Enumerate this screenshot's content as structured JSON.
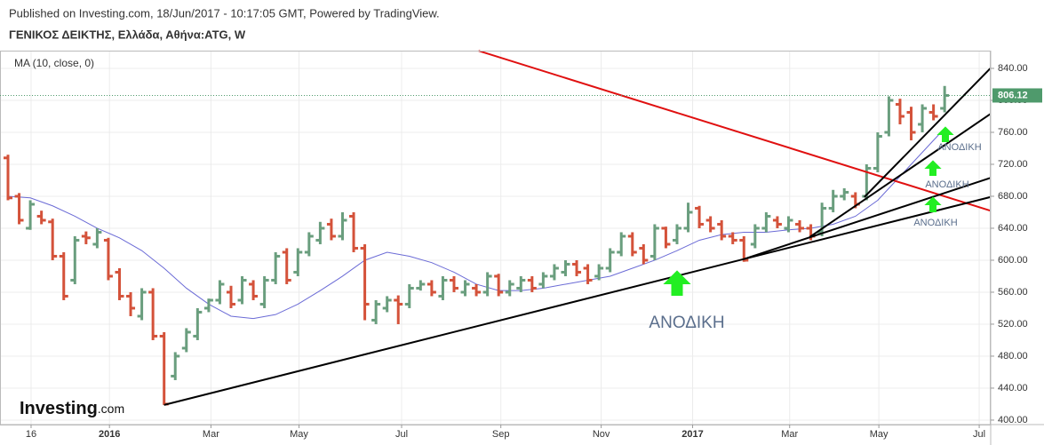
{
  "chart_data": {
    "type": "ohlc",
    "published": "Published on Investing.com, 18/Jun/2017 - 10:17:05 GMT, Powered by TradingView.",
    "title": "ΓΕΝΙΚΟΣ ΔΕΙΚΤΗΣ, Ελλάδα, Αθήνα:ATG, W",
    "logo": "Investing",
    "logo_suffix": ".com",
    "up_color": "#6a9e7e",
    "down_color": "#d4523a",
    "open": [
      728,
      680,
      640,
      655,
      648,
      605,
      575,
      630,
      620,
      625,
      585,
      555,
      530,
      560,
      505,
      455,
      490,
      505,
      540,
      550,
      560,
      550,
      570,
      545,
      575,
      610,
      585,
      610,
      625,
      645,
      630,
      655,
      615,
      525,
      540,
      550,
      545,
      565,
      570,
      555,
      575,
      560,
      565,
      560,
      580,
      560,
      565,
      575,
      570,
      580,
      585,
      595,
      590,
      580,
      590,
      610,
      630,
      615,
      605,
      640,
      625,
      640,
      665,
      650,
      645,
      630,
      625,
      620,
      640,
      650,
      640,
      645,
      640,
      635,
      665,
      680,
      680,
      680,
      715,
      760,
      795,
      785,
      770,
      785,
      790
    ],
    "high": [
      732,
      684,
      675,
      662,
      652,
      610,
      630,
      636,
      640,
      628,
      590,
      560,
      565,
      565,
      510,
      485,
      515,
      540,
      552,
      575,
      568,
      580,
      575,
      580,
      610,
      615,
      615,
      635,
      648,
      652,
      660,
      660,
      620,
      550,
      555,
      556,
      570,
      575,
      575,
      580,
      580,
      575,
      570,
      585,
      583,
      575,
      580,
      580,
      585,
      595,
      600,
      600,
      595,
      595,
      615,
      635,
      635,
      620,
      645,
      642,
      645,
      672,
      668,
      655,
      650,
      635,
      630,
      645,
      660,
      655,
      655,
      650,
      645,
      672,
      688,
      690,
      685,
      720,
      760,
      805,
      802,
      792,
      795,
      795,
      818
    ],
    "low": [
      675,
      645,
      638,
      645,
      600,
      550,
      570,
      620,
      615,
      575,
      550,
      530,
      525,
      500,
      419,
      450,
      485,
      500,
      535,
      545,
      540,
      545,
      550,
      540,
      570,
      570,
      580,
      605,
      620,
      625,
      625,
      610,
      525,
      520,
      535,
      520,
      540,
      562,
      555,
      550,
      560,
      555,
      555,
      555,
      555,
      555,
      560,
      560,
      565,
      575,
      580,
      580,
      570,
      575,
      585,
      605,
      605,
      595,
      600,
      615,
      620,
      635,
      640,
      635,
      625,
      620,
      598,
      615,
      635,
      640,
      635,
      635,
      625,
      630,
      660,
      675,
      665,
      675,
      710,
      755,
      770,
      750,
      760,
      775,
      785
    ],
    "close": [
      678,
      650,
      670,
      650,
      605,
      555,
      625,
      628,
      635,
      580,
      555,
      540,
      560,
      505,
      420,
      480,
      510,
      535,
      550,
      570,
      545,
      575,
      555,
      575,
      605,
      575,
      610,
      630,
      640,
      630,
      650,
      615,
      545,
      545,
      550,
      545,
      565,
      570,
      560,
      575,
      565,
      570,
      560,
      580,
      560,
      570,
      575,
      565,
      580,
      590,
      595,
      585,
      575,
      590,
      610,
      630,
      610,
      600,
      640,
      620,
      640,
      660,
      645,
      640,
      630,
      625,
      600,
      640,
      655,
      645,
      650,
      640,
      630,
      665,
      680,
      685,
      670,
      715,
      755,
      800,
      780,
      760,
      790,
      780,
      806.12
    ],
    "ma": {
      "label": "MA (10, close, 0)",
      "color": "#6b6bd6",
      "x": [
        0,
        2,
        4,
        6,
        8,
        10,
        12,
        14,
        16,
        18,
        20,
        22,
        24,
        26,
        28,
        30,
        32,
        34,
        36,
        38,
        40,
        42,
        44,
        46,
        48,
        50,
        52,
        54,
        56,
        58,
        60,
        62,
        64,
        66,
        68,
        70,
        72,
        74,
        76,
        78,
        80,
        82,
        84
      ],
      "values": [
        680,
        678,
        668,
        655,
        640,
        628,
        612,
        590,
        565,
        545,
        530,
        527,
        532,
        545,
        562,
        580,
        600,
        610,
        605,
        597,
        585,
        570,
        562,
        562,
        565,
        570,
        575,
        580,
        590,
        600,
        612,
        625,
        632,
        635,
        635,
        638,
        640,
        645,
        655,
        675,
        705,
        735,
        765
      ]
    },
    "last_price": 806.12,
    "last_color": "#4f9a6c",
    "trendlines": [
      {
        "color": "#e01010",
        "points": [
          [
            42.2,
            862
          ],
          [
            88.1,
            662
          ]
        ]
      },
      {
        "color": "#000000",
        "points": [
          [
            14.0,
            419
          ],
          [
            88.1,
            679
          ]
        ]
      },
      {
        "color": "#000000",
        "points": [
          [
            65.9,
            601
          ],
          [
            88.1,
            703
          ]
        ]
      },
      {
        "color": "#000000",
        "points": [
          [
            71.9,
            629
          ],
          [
            88.1,
            783
          ]
        ]
      },
      {
        "color": "#000000",
        "points": [
          [
            76.8,
            679
          ],
          [
            88.1,
            840
          ]
        ]
      }
    ],
    "annotations": [
      {
        "text": "ΑΝΟΔΙΚΗ"
      },
      {
        "text": "ΑΝΟΔΙΚΗ"
      },
      {
        "text": "ΑΝΟΔΙΚΗ"
      },
      {
        "text": "ΑΝΟΔΙΚΗ"
      }
    ],
    "xlim": [
      -0.717,
      88.13
    ],
    "ylim": [
      394.4,
      862.2
    ],
    "xticks": [
      {
        "value": 2.07,
        "label": "16"
      },
      {
        "value": 9.1,
        "label": "2016"
      },
      {
        "value": 18.2,
        "label": "Mar"
      },
      {
        "value": 26.1,
        "label": "May"
      },
      {
        "value": 35.3,
        "label": "Jul"
      },
      {
        "value": 44.2,
        "label": "Sep"
      },
      {
        "value": 53.2,
        "label": "Nov"
      },
      {
        "value": 61.4,
        "label": "2017"
      },
      {
        "value": 70.1,
        "label": "Mar"
      },
      {
        "value": 78.1,
        "label": "May"
      },
      {
        "value": 87.1,
        "label": "Jul"
      }
    ],
    "yticks": [
      {
        "value": 400,
        "label": "400.00"
      },
      {
        "value": 440,
        "label": "440.00"
      },
      {
        "value": 480,
        "label": "480.00"
      },
      {
        "value": 520,
        "label": "520.00"
      },
      {
        "value": 560,
        "label": "560.00"
      },
      {
        "value": 600,
        "label": "600.00"
      },
      {
        "value": 640,
        "label": "640.00"
      },
      {
        "value": 680,
        "label": "680.00"
      },
      {
        "value": 720,
        "label": "720.00"
      },
      {
        "value": 760,
        "label": "760.00"
      },
      {
        "value": 800,
        "label": "800.00"
      },
      {
        "value": 840,
        "label": "840.00"
      }
    ],
    "grid": true
  }
}
